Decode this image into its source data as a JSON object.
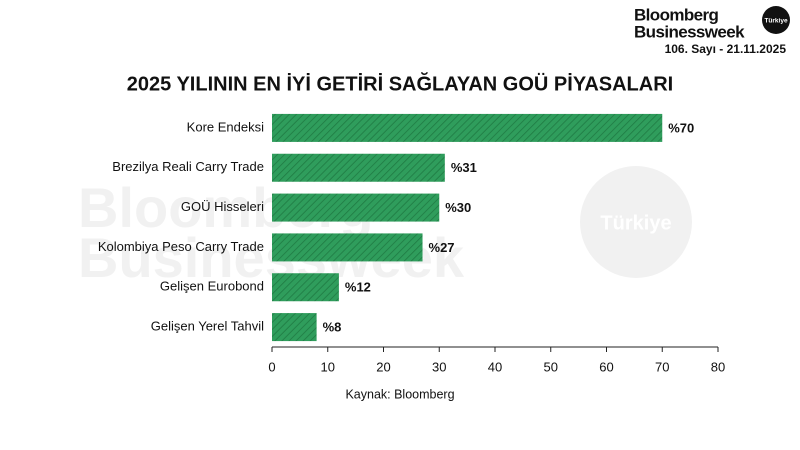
{
  "header": {
    "brand_line1": "Bloomberg",
    "brand_line2": "Businessweek",
    "badge": "Türkiye",
    "issue": "106. Sayı - 21.11.2025"
  },
  "watermark": {
    "line1": "Bloomberg",
    "line2": "Businessweek",
    "badge": "Türkiye"
  },
  "chart_data": {
    "type": "hbar",
    "title": "2025 YILININ EN İYİ GETİRİ SAĞLAYAN GOÜ PİYASALARI",
    "categories": [
      "Kore Endeksi",
      "Brezilya Reali Carry Trade",
      "GOÜ Hisseleri",
      "Kolombiya Peso Carry Trade",
      "Gelişen Eurobond",
      "Gelişen Yerel Tahvil"
    ],
    "values": [
      70,
      31,
      30,
      27,
      12,
      8
    ],
    "value_labels": [
      "%70",
      "%31",
      "%30",
      "%27",
      "%12",
      "%8"
    ],
    "color": "#2f9d5c",
    "xlim": [
      0,
      80
    ],
    "xticks": [
      0,
      10,
      20,
      30,
      40,
      50,
      60,
      70,
      80
    ],
    "source": "Kaynak: Bloomberg"
  }
}
